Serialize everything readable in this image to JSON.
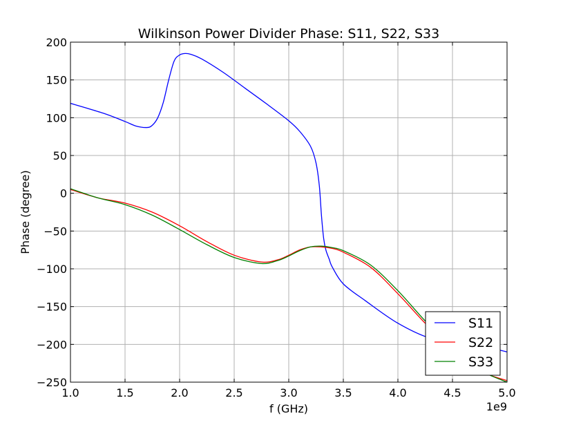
{
  "chart_data": {
    "type": "line",
    "title": "Wilkinson Power Divider Phase: S11, S22, S33",
    "xlabel": "f (GHz)",
    "ylabel": "Phase (degree)",
    "x_offset_label": "1e9",
    "xlim": [
      1.0,
      5.0
    ],
    "ylim": [
      -250,
      200
    ],
    "x_ticks": [
      1.0,
      1.5,
      2.0,
      2.5,
      3.0,
      3.5,
      4.0,
      4.5,
      5.0
    ],
    "x_tick_labels": [
      "1.0",
      "1.5",
      "2.0",
      "2.5",
      "3.0",
      "3.5",
      "4.0",
      "4.5",
      "5.0"
    ],
    "y_ticks": [
      200,
      150,
      100,
      50,
      0,
      -50,
      -100,
      -150,
      -200,
      -250
    ],
    "y_tick_labels": [
      "200",
      "150",
      "100",
      "50",
      "0",
      "−50",
      "−100",
      "−150",
      "−200",
      "−250"
    ],
    "grid": true,
    "legend_position": "lower-right",
    "series": [
      {
        "name": "S11",
        "color": "#0000ff",
        "x": [
          1.0,
          1.3,
          1.5,
          1.6,
          1.7,
          1.75,
          1.8,
          1.85,
          1.9,
          1.95,
          2.0,
          2.05,
          2.1,
          2.2,
          2.4,
          2.6,
          2.8,
          3.0,
          3.1,
          3.2,
          3.25,
          3.28,
          3.3,
          3.32,
          3.34,
          3.37,
          3.4,
          3.5,
          3.7,
          4.0,
          4.3,
          4.6,
          4.8,
          5.0
        ],
        "y": [
          119,
          106,
          95,
          89,
          87,
          90,
          100,
          120,
          150,
          175,
          183,
          185,
          184,
          178,
          160,
          139,
          118,
          96,
          82,
          62,
          40,
          10,
          -30,
          -60,
          -75,
          -87,
          -98,
          -120,
          -142,
          -172,
          -192,
          -198,
          -203,
          -210
        ]
      },
      {
        "name": "S22",
        "color": "#ff0000",
        "x": [
          1.0,
          1.25,
          1.5,
          1.75,
          2.0,
          2.25,
          2.5,
          2.75,
          2.9,
          3.0,
          3.1,
          3.2,
          3.3,
          3.4,
          3.5,
          3.75,
          4.0,
          4.25,
          4.5,
          4.75,
          5.0
        ],
        "y": [
          5,
          -6,
          -13,
          -25,
          -43,
          -64,
          -82,
          -91,
          -88,
          -82,
          -75,
          -71,
          -71,
          -73,
          -78,
          -98,
          -133,
          -172,
          -207,
          -235,
          -248
        ]
      },
      {
        "name": "S33",
        "color": "#008000",
        "x": [
          1.0,
          1.25,
          1.5,
          1.75,
          2.0,
          2.25,
          2.5,
          2.75,
          2.9,
          3.0,
          3.1,
          3.2,
          3.3,
          3.4,
          3.5,
          3.75,
          4.0,
          4.25,
          4.5,
          4.75,
          5.0
        ],
        "y": [
          6,
          -6,
          -15,
          -29,
          -48,
          -68,
          -85,
          -93,
          -89,
          -83,
          -76,
          -71,
          -70,
          -72,
          -76,
          -95,
          -129,
          -169,
          -205,
          -234,
          -250
        ]
      }
    ]
  }
}
